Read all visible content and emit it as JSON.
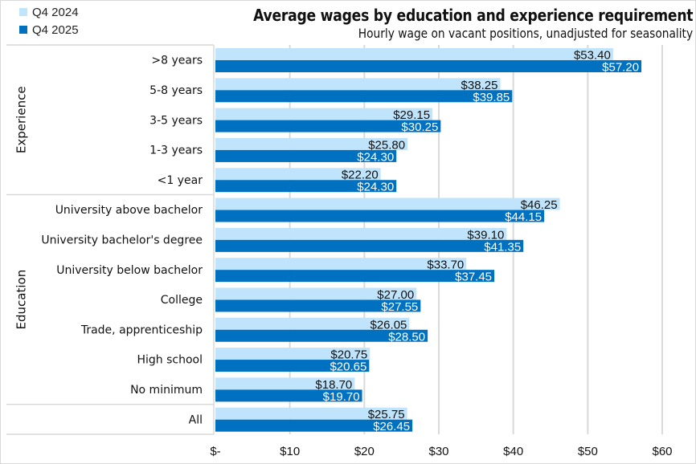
{
  "chart_data": {
    "type": "bar",
    "orientation": "horizontal",
    "title": "Average wages by education and experience requirement",
    "subtitle": "Hourly wage on vacant positions, unadjusted for seasonality",
    "xlabel": "",
    "ylabel": "",
    "xlim": [
      0,
      60
    ],
    "x_ticks": [
      0,
      10,
      20,
      30,
      40,
      50,
      60
    ],
    "x_tick_labels": [
      "$-",
      "$10",
      "$20",
      "$30",
      "$40",
      "$50",
      "$60"
    ],
    "grid": "vertical",
    "legend_position": "top-left",
    "groups": [
      {
        "name": "Experience",
        "categories": [
          ">8 years",
          "5-8 years",
          "3-5 years",
          "1-3 years",
          "<1 year"
        ]
      },
      {
        "name": "Education",
        "categories": [
          "University above bachelor",
          "University bachelor's degree",
          "University below bachelor",
          "College",
          "Trade, apprenticeship",
          "High school",
          "No minimum"
        ]
      },
      {
        "name": "",
        "categories": [
          "All"
        ]
      }
    ],
    "categories": [
      ">8 years",
      "5-8 years",
      "3-5 years",
      "1-3 years",
      "<1 year",
      "University above bachelor",
      "University bachelor's degree",
      "University below bachelor",
      "College",
      "Trade, apprenticeship",
      "High school",
      "No minimum",
      "All"
    ],
    "series": [
      {
        "name": "Q4 2024",
        "color": "#c0e4fb",
        "label_color": "#111111",
        "values": [
          53.4,
          38.25,
          29.15,
          25.8,
          22.2,
          46.25,
          39.1,
          33.7,
          27.0,
          26.05,
          20.75,
          18.7,
          25.75
        ],
        "labels": [
          "$53.40",
          "$38.25",
          "$29.15",
          "$25.80",
          "$22.20",
          "$46.25",
          "$39.10",
          "$33.70",
          "$27.00",
          "$26.05",
          "$20.75",
          "$18.70",
          "$25.75"
        ]
      },
      {
        "name": "Q4 2025",
        "color": "#0070c0",
        "label_color": "#ffffff",
        "values": [
          57.2,
          39.85,
          30.25,
          24.3,
          24.3,
          44.15,
          41.35,
          37.45,
          27.55,
          28.5,
          20.65,
          19.7,
          26.45
        ],
        "labels": [
          "$57.20",
          "$39.85",
          "$30.25",
          "$24.30",
          "$24.30",
          "$44.15",
          "$41.35",
          "$37.45",
          "$27.55",
          "$28.50",
          "$20.65",
          "$19.70",
          "$26.45"
        ]
      }
    ]
  }
}
